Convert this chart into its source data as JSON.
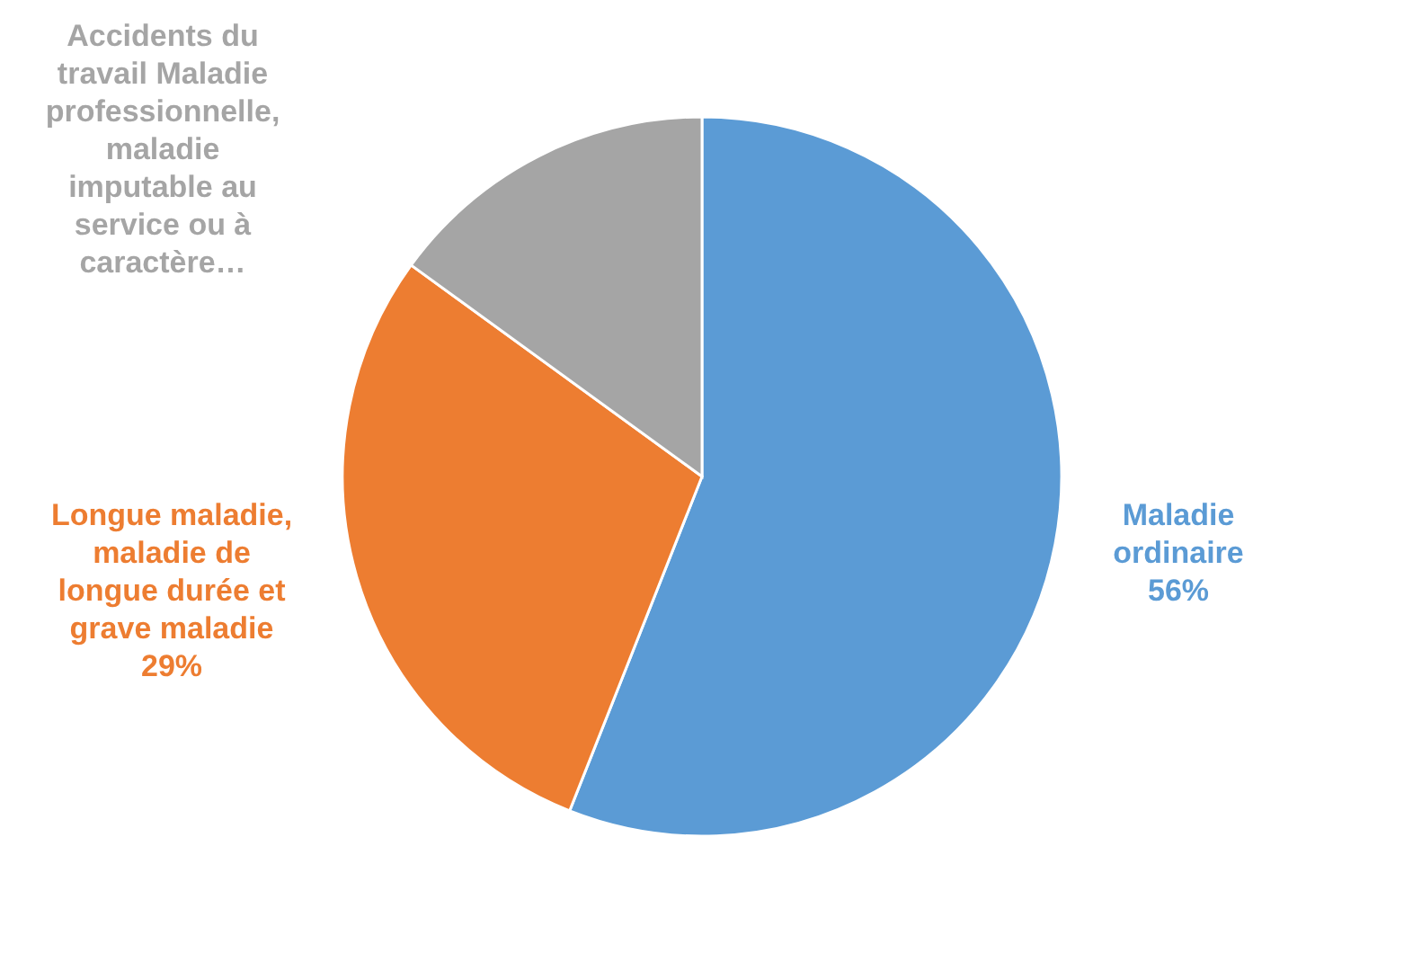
{
  "chart_data": {
    "type": "pie",
    "categories": [
      "Maladie ordinaire",
      "Longue maladie, maladie de longue durée et grave maladie",
      "Accidents du travail Maladie professionnelle, maladie imputable au service ou à caractère…"
    ],
    "values": [
      56,
      29,
      15
    ],
    "colors": [
      "#5b9bd5",
      "#ed7d31",
      "#a5a5a5"
    ],
    "value_labels": [
      "56%",
      "29%",
      null
    ]
  }
}
